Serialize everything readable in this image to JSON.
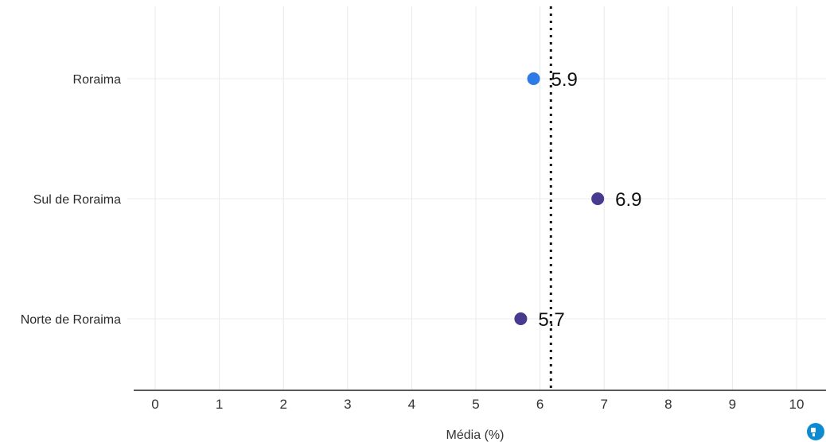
{
  "chart_data": {
    "type": "scatter",
    "categories": [
      "Roraima",
      "Sul de Roraima",
      "Norte de Roraima"
    ],
    "values": [
      5.9,
      6.9,
      5.7
    ],
    "point_colors": [
      "#2e7be6",
      "#473a8f",
      "#473a8f"
    ],
    "data_labels": [
      "5.9",
      "6.9",
      "5.7"
    ],
    "reference_line": 6.17,
    "xlabel": "Média (%)",
    "ylabel": "",
    "xlim": [
      0,
      10.45
    ],
    "x_ticks": [
      0,
      1,
      2,
      3,
      4,
      5,
      6,
      7,
      8,
      9,
      10
    ],
    "x_tick_labels": [
      "0",
      "1",
      "2",
      "3",
      "4",
      "5",
      "6",
      "7",
      "8",
      "9",
      "10"
    ],
    "grid": true
  },
  "logo": {
    "color": "#0e8bd0"
  }
}
